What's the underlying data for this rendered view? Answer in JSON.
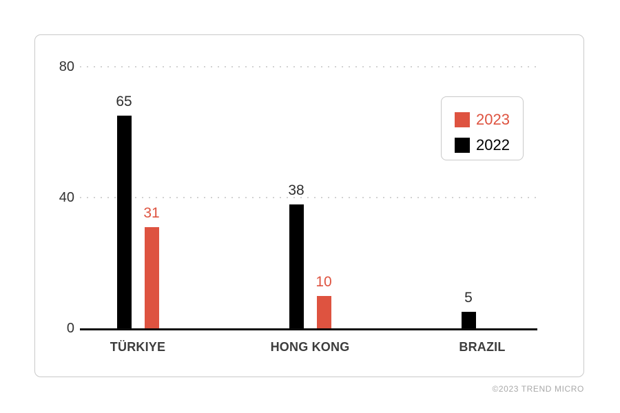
{
  "footer": {
    "credit": "©2023 TREND MICRO"
  },
  "legend": {
    "items": [
      {
        "label": "2023",
        "color": "#DE5340"
      },
      {
        "label": "2022",
        "color": "#000000"
      }
    ]
  },
  "chart_data": {
    "type": "bar",
    "categories": [
      "TÜRKIYE",
      "HONG KONG",
      "BRAZIL"
    ],
    "series": [
      {
        "name": "2022",
        "color": "#000000",
        "label_color": "#2e2e2e",
        "values": [
          65,
          38,
          5
        ]
      },
      {
        "name": "2023",
        "color": "#DE5340",
        "label_color": "#DE5340",
        "values": [
          31,
          10,
          null
        ]
      }
    ],
    "yticks": [
      0,
      40,
      80
    ],
    "ylim": [
      0,
      80
    ],
    "grid": "horizontal-dotted",
    "legend_position": "top-right"
  }
}
